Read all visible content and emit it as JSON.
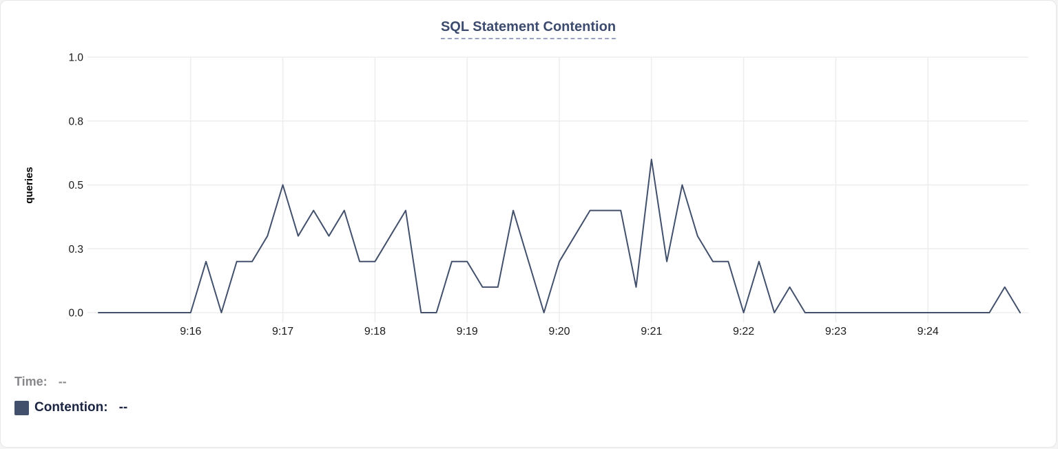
{
  "card": {
    "title": "SQL Statement Contention"
  },
  "legend": {
    "time_label": "Time:",
    "time_value": "--",
    "contention_label": "Contention:",
    "contention_value": "--",
    "swatch_color": "#42506b"
  },
  "colors": {
    "line": "#42506b",
    "title_text": "#3d4c6e",
    "title_underline": "#9ba3c4",
    "gridline": "#ededee",
    "axis_text": "#1a1a1c",
    "axis_title_text": "#000000",
    "muted_text": "#87878c",
    "legend_dark_text": "#1b2440",
    "card_background": "#ffffff"
  },
  "chart_data": {
    "type": "line",
    "title": "SQL Statement Contention",
    "xlabel": "",
    "ylabel": "queries",
    "ylim": [
      0,
      1
    ],
    "grid": true,
    "legend_position": "bottom-left",
    "x_start": "9:15:00",
    "x_end": "9:25:00",
    "sample_interval_seconds": 10,
    "xticks": [
      "9:16",
      "9:17",
      "9:18",
      "9:19",
      "9:20",
      "9:21",
      "9:22",
      "9:23",
      "9:24"
    ],
    "yticks": {
      "labels": [
        "0.0",
        "0.3",
        "0.5",
        "0.8",
        "1.0"
      ],
      "values": [
        0,
        0.25,
        0.5,
        0.75,
        1
      ]
    },
    "series": [
      {
        "name": "Contention",
        "color": "#42506b",
        "x": [
          "9:15:00",
          "9:15:10",
          "9:15:20",
          "9:15:30",
          "9:15:40",
          "9:15:50",
          "9:16:00",
          "9:16:10",
          "9:16:20",
          "9:16:30",
          "9:16:40",
          "9:16:50",
          "9:17:00",
          "9:17:10",
          "9:17:20",
          "9:17:30",
          "9:17:40",
          "9:17:50",
          "9:18:00",
          "9:18:10",
          "9:18:20",
          "9:18:30",
          "9:18:40",
          "9:18:50",
          "9:19:00",
          "9:19:10",
          "9:19:20",
          "9:19:30",
          "9:19:40",
          "9:19:50",
          "9:20:00",
          "9:20:10",
          "9:20:20",
          "9:20:30",
          "9:20:40",
          "9:20:50",
          "9:21:00",
          "9:21:10",
          "9:21:20",
          "9:21:30",
          "9:21:40",
          "9:21:50",
          "9:22:00",
          "9:22:10",
          "9:22:20",
          "9:22:30",
          "9:22:40",
          "9:22:50",
          "9:23:00",
          "9:23:10",
          "9:23:20",
          "9:23:30",
          "9:23:40",
          "9:23:50",
          "9:24:00",
          "9:24:10",
          "9:24:20",
          "9:24:30",
          "9:24:40",
          "9:24:50",
          "9:25:00"
        ],
        "values": [
          0,
          0,
          0,
          0,
          0,
          0,
          0,
          0.2,
          0,
          0.2,
          0.2,
          0.3,
          0.5,
          0.3,
          0.4,
          0.3,
          0.4,
          0.2,
          0.2,
          0.3,
          0.4,
          0,
          0,
          0.2,
          0.2,
          0.1,
          0.1,
          0.4,
          0.2,
          0,
          0.2,
          0.3,
          0.4,
          0.4,
          0.4,
          0.1,
          0.6,
          0.2,
          0.5,
          0.3,
          0.2,
          0.2,
          0,
          0.2,
          0,
          0.1,
          0,
          0,
          0,
          0,
          0,
          0,
          0,
          0,
          0,
          0,
          0,
          0,
          0,
          0.1,
          0
        ]
      }
    ]
  }
}
